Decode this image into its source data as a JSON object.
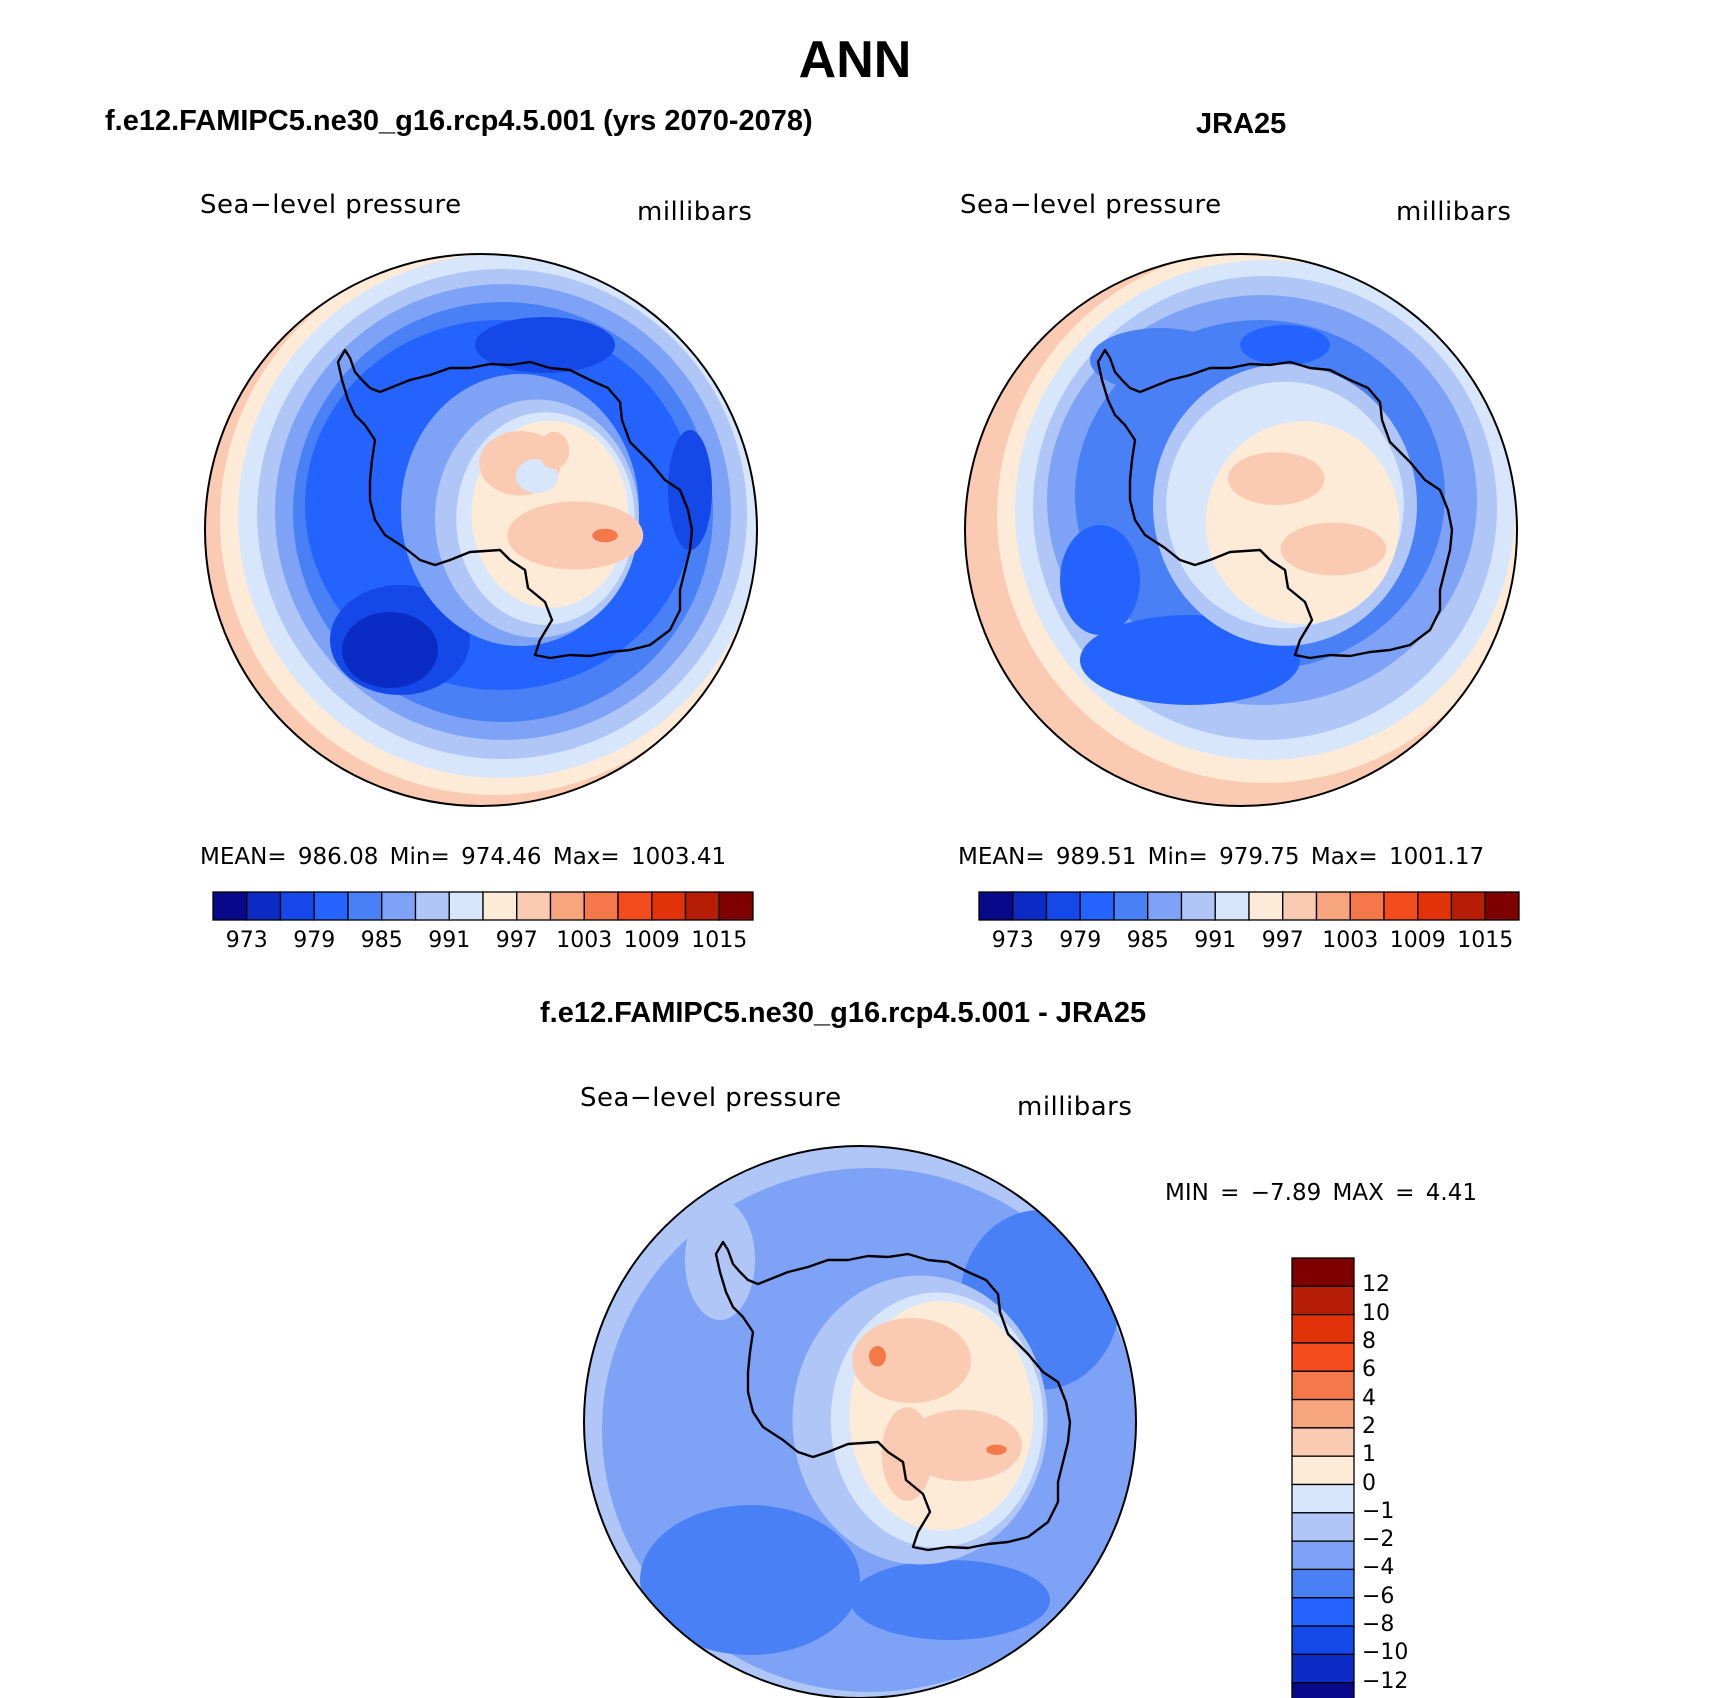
{
  "figure": {
    "title": "ANN"
  },
  "panels": {
    "model": {
      "title": "f.e12.FAMIPC5.ne30_g16.rcp4.5.001 (yrs 2070-2078)",
      "variable": "Sea−level pressure",
      "units": "millibars",
      "stats": "MEAN=  986.08   Min=  974.46   Max=  1003.41",
      "mean": 986.08,
      "min": 974.46,
      "max": 1003.41
    },
    "obs": {
      "title": "JRA25",
      "variable": "Sea−level pressure",
      "units": "millibars",
      "stats": "MEAN=  989.51   Min=  979.75   Max=  1001.17",
      "mean": 989.51,
      "min": 979.75,
      "max": 1001.17
    },
    "diff": {
      "title": "f.e12.FAMIPC5.ne30_g16.rcp4.5.001 - JRA25",
      "variable": "Sea−level pressure",
      "units": "millibars",
      "stats": "MIN =   −7.89 MAX =    4.41",
      "min": -7.89,
      "max": 4.41
    }
  },
  "chart_data": [
    {
      "type": "heatmap",
      "title": "f.e12.FAMIPC5.ne30_g16.rcp4.5.001 (yrs 2070-2078)",
      "projection": "south polar stereographic",
      "variable": "Sea-level pressure",
      "units": "millibars",
      "mean": 986.08,
      "min": 974.46,
      "max": 1003.41,
      "contour_levels": [
        970,
        973,
        976,
        979,
        982,
        985,
        988,
        991,
        994,
        997,
        1000,
        1003,
        1006,
        1009,
        1012,
        1015
      ],
      "labelbar_ticks": [
        "973",
        "979",
        "985",
        "991",
        "997",
        "1003",
        "1009",
        "1015"
      ],
      "colors": [
        "#08088a",
        "#0a2bc4",
        "#1548e8",
        "#2563ff",
        "#4a80f5",
        "#7ea3f6",
        "#b0c6f7",
        "#d8e6fb",
        "#fdebd8",
        "#fbcab2",
        "#f7a57f",
        "#f5784a",
        "#f44c1c",
        "#e1320a",
        "#b51e05",
        "#7e0000"
      ]
    },
    {
      "type": "heatmap",
      "title": "JRA25",
      "projection": "south polar stereographic",
      "variable": "Sea-level pressure",
      "units": "millibars",
      "mean": 989.51,
      "min": 979.75,
      "max": 1001.17,
      "contour_levels": [
        970,
        973,
        976,
        979,
        982,
        985,
        988,
        991,
        994,
        997,
        1000,
        1003,
        1006,
        1009,
        1012,
        1015
      ],
      "labelbar_ticks": [
        "973",
        "979",
        "985",
        "991",
        "997",
        "1003",
        "1009",
        "1015"
      ],
      "colors": [
        "#08088a",
        "#0a2bc4",
        "#1548e8",
        "#2563ff",
        "#4a80f5",
        "#7ea3f6",
        "#b0c6f7",
        "#d8e6fb",
        "#fdebd8",
        "#fbcab2",
        "#f7a57f",
        "#f5784a",
        "#f44c1c",
        "#e1320a",
        "#b51e05",
        "#7e0000"
      ]
    },
    {
      "type": "heatmap",
      "title": "f.e12.FAMIPC5.ne30_g16.rcp4.5.001 - JRA25",
      "projection": "south polar stereographic",
      "variable": "Sea-level pressure",
      "units": "millibars",
      "min": -7.89,
      "max": 4.41,
      "contour_levels": [
        -12,
        -10,
        -8,
        -6,
        -4,
        -2,
        -1,
        0,
        1,
        2,
        4,
        6,
        8,
        10,
        12
      ],
      "labelbar_ticks": [
        "12",
        "10",
        "8",
        "6",
        "4",
        "2",
        "1",
        "0",
        "−1",
        "−2",
        "−4",
        "−6",
        "−8",
        "−10",
        "−12"
      ],
      "colors": [
        "#7e0000",
        "#b51e05",
        "#e1320a",
        "#f44c1c",
        "#f5784a",
        "#f7a57f",
        "#fbcab2",
        "#fdebd8",
        "#d8e6fb",
        "#b0c6f7",
        "#7ea3f6",
        "#4a80f5",
        "#2563ff",
        "#1548e8",
        "#0a2bc4",
        "#08088a"
      ]
    }
  ]
}
